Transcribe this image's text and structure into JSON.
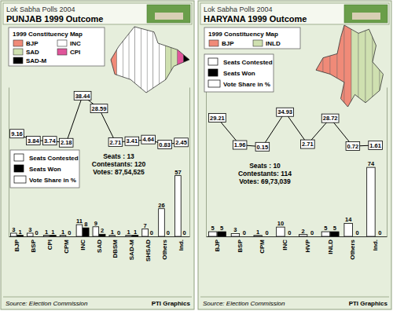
{
  "chart_data": [
    {
      "type": "bar",
      "title": "PUNJAB 1999 Outcome",
      "subtitle": "Lok Sabha Polls 2004",
      "categories": [
        "BJP",
        "BSP",
        "CPI",
        "CPM",
        "INC",
        "SAD",
        "DBSM",
        "SAD-M",
        "SHSAD",
        "Others",
        "Ind."
      ],
      "series": [
        {
          "name": "Seats Contested",
          "color": "#ffffff",
          "values": [
            3,
            3,
            1,
            1,
            11,
            9,
            1,
            1,
            7,
            26,
            57
          ]
        },
        {
          "name": "Seats Won",
          "color": "#000000",
          "values": [
            1,
            0,
            1,
            0,
            8,
            2,
            0,
            1,
            0,
            0,
            0
          ]
        },
        {
          "name": "Vote Share in %",
          "type": "line",
          "marker": "square",
          "color": "#000000",
          "axis": "y2",
          "values": [
            9.16,
            3.84,
            3.74,
            2.18,
            38.44,
            28.59,
            2.71,
            3.41,
            4.64,
            0.83,
            2.45
          ]
        }
      ],
      "ylim": [
        0,
        140
      ],
      "yticks": [],
      "y2lim": [
        -70,
        45
      ],
      "y2ticks": [],
      "tick_labels": "x",
      "data_labels": true,
      "legend": "left",
      "annotations": [
        "Seats : 13",
        "Contestants: 120",
        "Votes: 87,54,525"
      ],
      "map": {
        "title": "1999 Constituency Map",
        "legend": [
          {
            "name": "BJP",
            "color": "#f08a78"
          },
          {
            "name": "INC",
            "color": "#ffffff"
          },
          {
            "name": "SAD",
            "color": "#cfe0b0"
          },
          {
            "name": "CPI",
            "color": "#e0559a"
          },
          {
            "name": "SAD-M",
            "color": "#000000"
          }
        ]
      },
      "source": "Source: Election Commission",
      "credit": "PTI Graphics"
    },
    {
      "type": "bar",
      "title": "HARYANA 1999 Outcome",
      "subtitle": "Lok Sabha Polls 2004",
      "categories": [
        "BJP",
        "BSP",
        "CPM",
        "INC",
        "HVP",
        "INLD",
        "Others",
        "Ind."
      ],
      "series": [
        {
          "name": "Seats Contested",
          "color": "#ffffff",
          "values": [
            5,
            3,
            1,
            10,
            2,
            5,
            14,
            74
          ]
        },
        {
          "name": "Seats Won",
          "color": "#000000",
          "values": [
            5,
            0,
            0,
            0,
            0,
            5,
            0,
            0
          ]
        },
        {
          "name": "Vote Share in %",
          "type": "line",
          "marker": "square",
          "color": "#000000",
          "axis": "y2",
          "values": [
            29.21,
            1.96,
            0.15,
            34.93,
            2.71,
            28.72,
            0.72,
            1.61
          ]
        }
      ],
      "ylim": [
        0,
        160
      ],
      "yticks": [],
      "y2lim": [
        -90,
        60
      ],
      "y2ticks": [],
      "tick_labels": "x",
      "data_labels": true,
      "legend": "top-left",
      "annotations": [
        "Seats : 10",
        "Contestants: 114",
        "Votes: 69,73,039"
      ],
      "map": {
        "title": "1999 Constituency Map",
        "legend": [
          {
            "name": "BJP",
            "color": "#f08a78"
          },
          {
            "name": "INLD",
            "color": "#cfe0b0"
          }
        ]
      },
      "source": "Source: Election Commission",
      "credit": "PTI Graphics"
    }
  ]
}
